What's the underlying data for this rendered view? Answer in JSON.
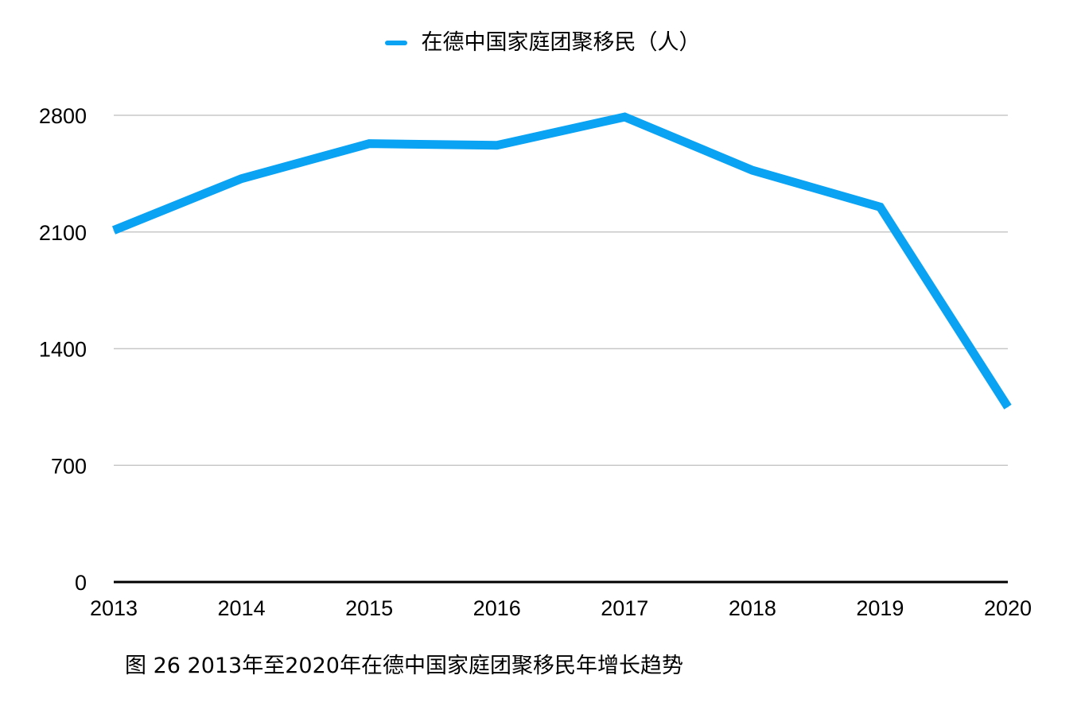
{
  "chart_data": {
    "type": "line",
    "title": "",
    "xlabel": "",
    "ylabel": "",
    "categories": [
      "2013",
      "2014",
      "2015",
      "2016",
      "2017",
      "2018",
      "2019",
      "2020"
    ],
    "series": [
      {
        "name": "在德中国家庭团聚移民（人）",
        "values": [
          2110,
          2420,
          2630,
          2620,
          2790,
          2470,
          2250,
          1050
        ],
        "color": "#0AA2F2"
      }
    ],
    "ylim": [
      0,
      2800
    ],
    "yticks": [
      0,
      700,
      1400,
      2100,
      2800
    ],
    "grid": true,
    "legend": "top-center"
  },
  "legend": {
    "label": "在德中国家庭团聚移民（人）",
    "color": "#0AA2F2"
  },
  "caption": "图 26 2013年至2020年在德中国家庭团聚移民年增长趋势"
}
